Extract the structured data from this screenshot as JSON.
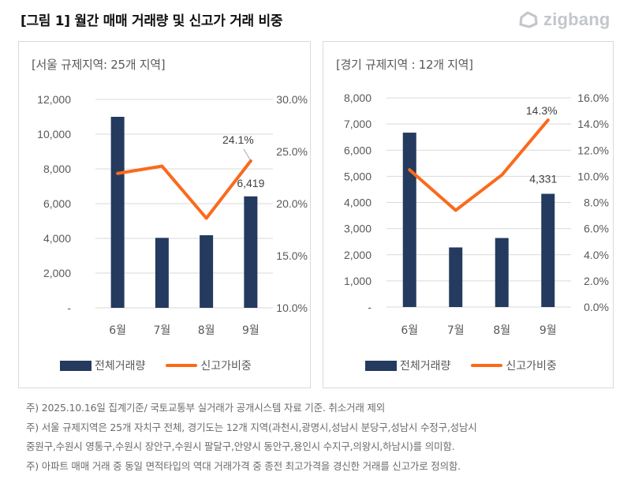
{
  "figure": {
    "title": "[그림 1] 월간 매매 거래량 및 신고가 거래 비중",
    "logo_text": "zigbang",
    "logo_icon": "zigbang-house-icon"
  },
  "colors": {
    "bar": "#243a5e",
    "line": "#fa6a1c",
    "grid": "#d9d9d9"
  },
  "chart_data": [
    {
      "type": "bar+line",
      "title": "[서울 규제지역: 25개 지역]",
      "categories": [
        "6월",
        "7월",
        "8월",
        "9월"
      ],
      "series": [
        {
          "name": "전체거래량",
          "type": "bar",
          "axis": "left",
          "values": [
            11000,
            4030,
            4180,
            6419
          ]
        },
        {
          "name": "신고가비중",
          "type": "line",
          "axis": "right",
          "values": [
            22.9,
            23.6,
            18.6,
            24.1
          ]
        }
      ],
      "left_axis": {
        "min": 0,
        "max": 12000,
        "ticks": [
          0,
          2000,
          4000,
          6000,
          8000,
          10000,
          12000
        ],
        "tick_labels": [
          "-",
          "2,000",
          "4,000",
          "6,000",
          "8,000",
          "10,000",
          "12,000"
        ]
      },
      "right_axis": {
        "min": 10,
        "max": 30,
        "ticks": [
          10,
          15,
          20,
          25,
          30
        ],
        "tick_labels": [
          "10.0%",
          "15.0%",
          "20.0%",
          "25.0%",
          "30.0%"
        ]
      },
      "data_labels": [
        {
          "series": "전체거래량",
          "index": 3,
          "text": "6,419"
        },
        {
          "series": "신고가비중",
          "index": 3,
          "text": "24.1%"
        }
      ],
      "grid": true,
      "legend": {
        "position": "bottom",
        "entries": [
          "전체거래량",
          "신고가비중"
        ]
      }
    },
    {
      "type": "bar+line",
      "title": "[경기 규제지역 : 12개 지역]",
      "categories": [
        "6월",
        "7월",
        "8월",
        "9월"
      ],
      "series": [
        {
          "name": "전체거래량",
          "type": "bar",
          "axis": "left",
          "values": [
            6670,
            2280,
            2640,
            4331
          ]
        },
        {
          "name": "신고가비중",
          "type": "line",
          "axis": "right",
          "values": [
            10.5,
            7.4,
            10.1,
            14.3
          ]
        }
      ],
      "left_axis": {
        "min": 0,
        "max": 8000,
        "ticks": [
          0,
          1000,
          2000,
          3000,
          4000,
          5000,
          6000,
          7000,
          8000
        ],
        "tick_labels": [
          "-",
          "1,000",
          "2,000",
          "3,000",
          "4,000",
          "5,000",
          "6,000",
          "7,000",
          "8,000"
        ]
      },
      "right_axis": {
        "min": 0,
        "max": 16,
        "ticks": [
          0,
          2,
          4,
          6,
          8,
          10,
          12,
          14,
          16
        ],
        "tick_labels": [
          "0.0%",
          "2.0%",
          "4.0%",
          "6.0%",
          "8.0%",
          "10.0%",
          "12.0%",
          "14.0%",
          "16.0%"
        ]
      },
      "data_labels": [
        {
          "series": "전체거래량",
          "index": 3,
          "text": "4,331"
        },
        {
          "series": "신고가비중",
          "index": 3,
          "text": "14.3%"
        }
      ],
      "grid": true,
      "legend": {
        "position": "bottom",
        "entries": [
          "전체거래량",
          "신고가비중"
        ]
      }
    }
  ],
  "notes": [
    "주) 2025.10.16일 집계기준/ 국토교통부 실거래가 공개시스템 자료 기준. 취소거래 제외",
    "주) 서울 규제지역은 25개 자치구 전체, 경기도는  12개 지역(과천시,광명시,성남시 분당구,성남시 수정구,성남시",
    "중원구,수원시 영통구,수원시 장안구,수원시 팔달구,안양시 동안구,용인시 수지구,의왕시,하남시)를 의미함.",
    "주) 아파트 매매 거래 중 동일 면적타입의 역대 거래가격 중 종전 최고가격을 경신한 거래를 신고가로 정의함."
  ]
}
